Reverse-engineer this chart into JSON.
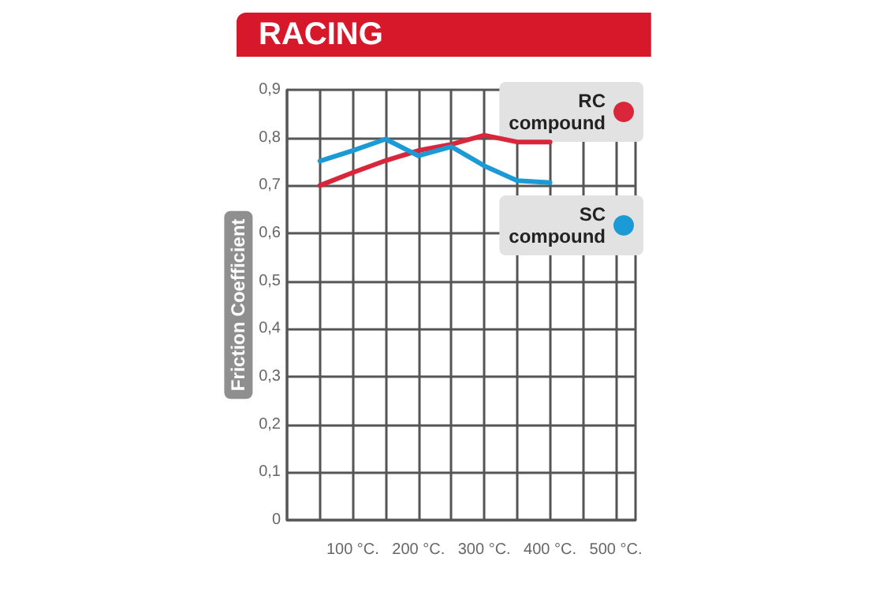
{
  "chart_data": {
    "type": "line",
    "title": "RACING",
    "ylabel": "Friction Coefficient",
    "x": [
      50,
      100,
      150,
      200,
      250,
      300,
      350,
      400
    ],
    "series": [
      {
        "name": "RC compound",
        "color": "#d9263a",
        "values": [
          0.7,
          0.727,
          0.752,
          0.773,
          0.786,
          0.805,
          0.791,
          0.791
        ]
      },
      {
        "name": "SC compound",
        "color": "#1b9ad6",
        "values": [
          0.751,
          0.773,
          0.797,
          0.762,
          0.781,
          0.741,
          0.71,
          0.706
        ]
      }
    ],
    "xlim": [
      0,
      530
    ],
    "xticks": [
      {
        "value": 50,
        "label": null
      },
      {
        "value": 100,
        "label": "100 °C."
      },
      {
        "value": 150,
        "label": null
      },
      {
        "value": 200,
        "label": "200 °C."
      },
      {
        "value": 250,
        "label": null
      },
      {
        "value": 300,
        "label": "300 °C."
      },
      {
        "value": 350,
        "label": null
      },
      {
        "value": 400,
        "label": "400 °C."
      },
      {
        "value": 450,
        "label": null
      },
      {
        "value": 500,
        "label": "500 °C."
      }
    ],
    "ylim": [
      0,
      0.9
    ],
    "yticks": [
      0,
      {
        "value": 0.1,
        "label": "0,1"
      },
      {
        "value": 0.2,
        "label": "0,2"
      },
      {
        "value": 0.3,
        "label": "0,3"
      },
      {
        "value": 0.4,
        "label": "0,4"
      },
      {
        "value": 0.5,
        "label": "0,5"
      },
      {
        "value": 0.6,
        "label": "0,6"
      },
      {
        "value": 0.7,
        "label": "0,7"
      },
      {
        "value": 0.8,
        "label": "0,8"
      },
      {
        "value": 0.9,
        "label": "0,9"
      }
    ],
    "grid": true,
    "legend": "right",
    "marker": "none",
    "line_style": "solid"
  }
}
